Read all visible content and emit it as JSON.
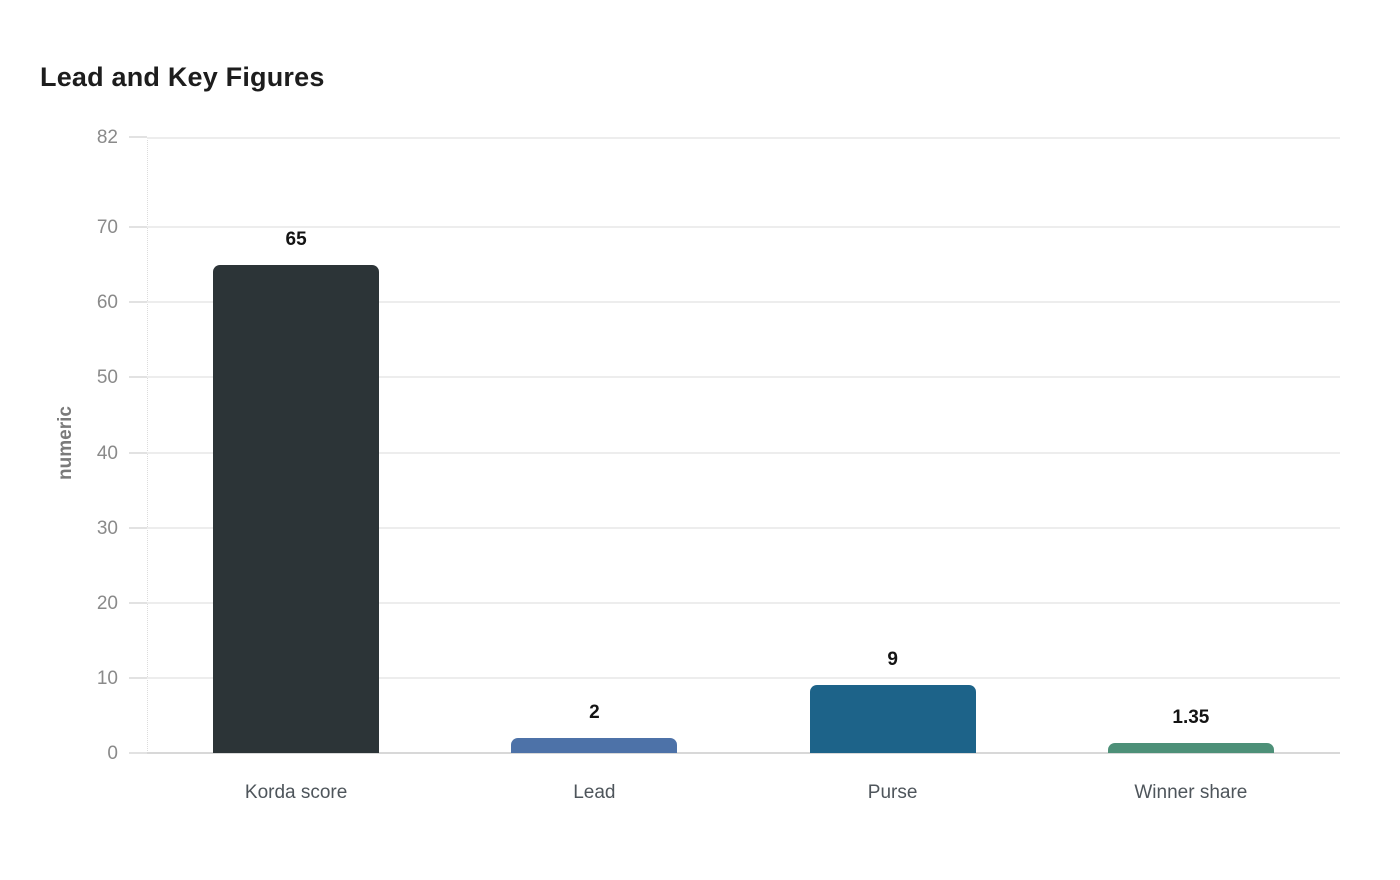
{
  "title": "Lead and Key Figures",
  "chart_data": {
    "type": "bar",
    "title": "Lead and Key Figures",
    "categories": [
      "Korda score",
      "Lead",
      "Purse",
      "Winner share"
    ],
    "values": [
      65,
      2,
      9,
      1.35
    ],
    "value_labels": [
      "65",
      "2",
      "9",
      "1.35"
    ],
    "bar_colors": [
      "#2c3437",
      "#4d72a8",
      "#1d6389",
      "#4d9078"
    ],
    "xlabel": "",
    "ylabel": "numeric",
    "ylim": [
      0,
      82
    ],
    "yticks": [
      0,
      10,
      20,
      30,
      40,
      50,
      60,
      70,
      82
    ],
    "grid": true,
    "legend": false,
    "theme": {
      "background": "#ffffff",
      "title_color": "#1d1d1d",
      "grid_color": "#ededed",
      "zero_line_color": "#d8d8d8",
      "axis_edge_color": "#dcdcdc",
      "tick_mark_color": "#e2e2e2",
      "tick_label_color": "#8a8a8a",
      "axis_title_color": "#7a7a7a",
      "category_label_color": "#4e555b",
      "value_label_color": "#141414"
    }
  }
}
